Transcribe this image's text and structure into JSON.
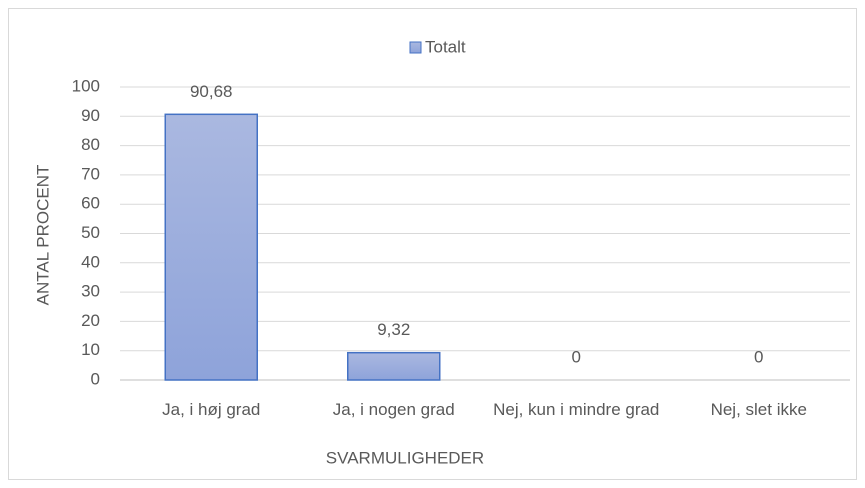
{
  "chart_data": {
    "type": "bar",
    "categories": [
      "Ja, i høj grad",
      "Ja, i nogen grad",
      "Nej, kun i mindre grad",
      "Nej, slet ikke"
    ],
    "series": [
      {
        "name": "Totalt",
        "color": "#4472c4",
        "values": [
          90.68,
          9.32,
          0,
          0
        ],
        "value_labels": [
          "90,68",
          "9,32",
          "0",
          "0"
        ]
      }
    ],
    "xlabel": "SVARMULIGHEDER",
    "ylabel": "ANTAL PROCENT",
    "ylim": [
      0,
      100
    ],
    "yticks": [
      0,
      10,
      20,
      30,
      40,
      50,
      60,
      70,
      80,
      90,
      100
    ],
    "grid": true,
    "legend": "top"
  }
}
